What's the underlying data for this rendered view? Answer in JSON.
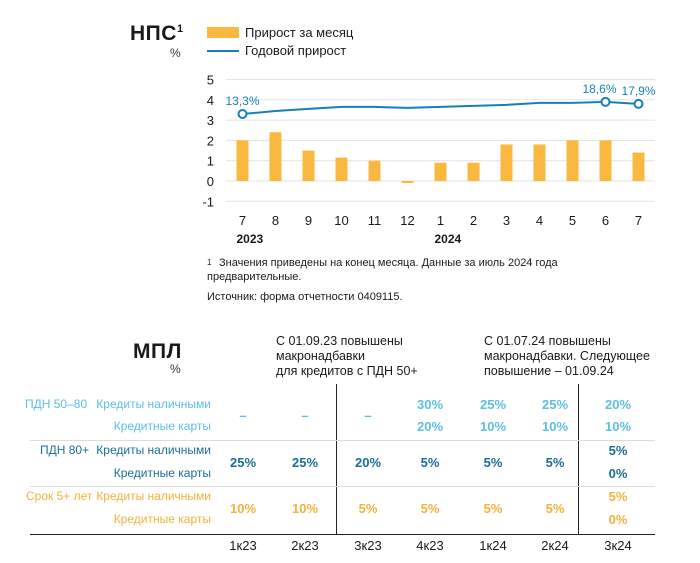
{
  "nps": {
    "title": "НПС",
    "footnote_mark": "1",
    "unit": "%",
    "legend": {
      "bars": "Прирост за месяц",
      "line": "Годовой прирост"
    },
    "note_mark": "1",
    "note": "Значения приведены на конец месяца. Данные за июль 2024 года предварительные.",
    "source": "Источник: форма отчетности 0409115."
  },
  "chart_data": {
    "type": "bar",
    "categories": [
      "7",
      "8",
      "9",
      "10",
      "11",
      "12",
      "1",
      "2",
      "3",
      "4",
      "5",
      "6",
      "7"
    ],
    "year_labels": [
      {
        "label": "2023",
        "at_index": 0
      },
      {
        "label": "2024",
        "at_index": 6
      }
    ],
    "series": [
      {
        "name": "Прирост за месяц",
        "type": "bar",
        "color": "#fbb83f",
        "values": [
          2.0,
          2.4,
          1.5,
          1.15,
          1.0,
          -0.1,
          0.9,
          0.9,
          1.8,
          1.8,
          2.0,
          2.0,
          1.4
        ]
      },
      {
        "name": "Годовой прирост",
        "type": "line",
        "color": "#1880b6",
        "values": [
          3.3,
          3.45,
          3.55,
          3.65,
          3.65,
          3.6,
          3.65,
          3.7,
          3.75,
          3.85,
          3.85,
          3.9,
          3.8
        ],
        "point_labels": [
          {
            "index": 0,
            "text": "13,3%"
          },
          {
            "index": 11,
            "text": "18,6%"
          },
          {
            "index": 12,
            "text": "17,9%"
          }
        ]
      }
    ],
    "yticks": [
      "5",
      "4",
      "3",
      "2",
      "1",
      "0",
      "-1"
    ],
    "ylim": [
      -1,
      5
    ],
    "grid": true
  },
  "mpl": {
    "title": "МПЛ",
    "unit": "%",
    "header1": [
      "С 01.09.23 повышены",
      "макронадбавки",
      "для кредитов с ПДН 50+"
    ],
    "header2": [
      "С 01.07.24 повышены",
      "макронадбавки. Следующее",
      "повышение – 01.09.24"
    ],
    "columns": [
      "1к23",
      "2к23",
      "3к23",
      "4к23",
      "1к24",
      "2к24",
      "3к24"
    ],
    "groups": [
      {
        "label": "ПДН 50–80",
        "color": "#5bbfe5",
        "rows": [
          {
            "label": "Кредиты наличными",
            "values": [
              "–",
              "–",
              "–",
              "30%",
              "25%",
              "25%",
              "20%"
            ]
          },
          {
            "label": "Кредитные карты",
            "values": [
              "",
              "",
              "",
              "20%",
              "10%",
              "10%",
              "10%"
            ]
          }
        ]
      },
      {
        "label": "ПДН 80+",
        "color": "#1a6e9a",
        "rows": [
          {
            "label": "Кредиты наличными",
            "values": [
              "25%",
              "25%",
              "20%",
              "5%",
              "5%",
              "5%",
              "5%"
            ]
          },
          {
            "label": "Кредитные карты",
            "values": [
              "",
              "",
              "",
              "",
              "",
              "",
              "0%"
            ]
          }
        ]
      },
      {
        "label": "Срок 5+ лет",
        "color": "#f6b03b",
        "rows": [
          {
            "label": "Кредиты наличными",
            "values": [
              "10%",
              "10%",
              "5%",
              "5%",
              "5%",
              "5%",
              "5%"
            ]
          },
          {
            "label": "Кредитные карты",
            "values": [
              "",
              "",
              "",
              "",
              "",
              "",
              "0%"
            ]
          }
        ]
      }
    ]
  }
}
